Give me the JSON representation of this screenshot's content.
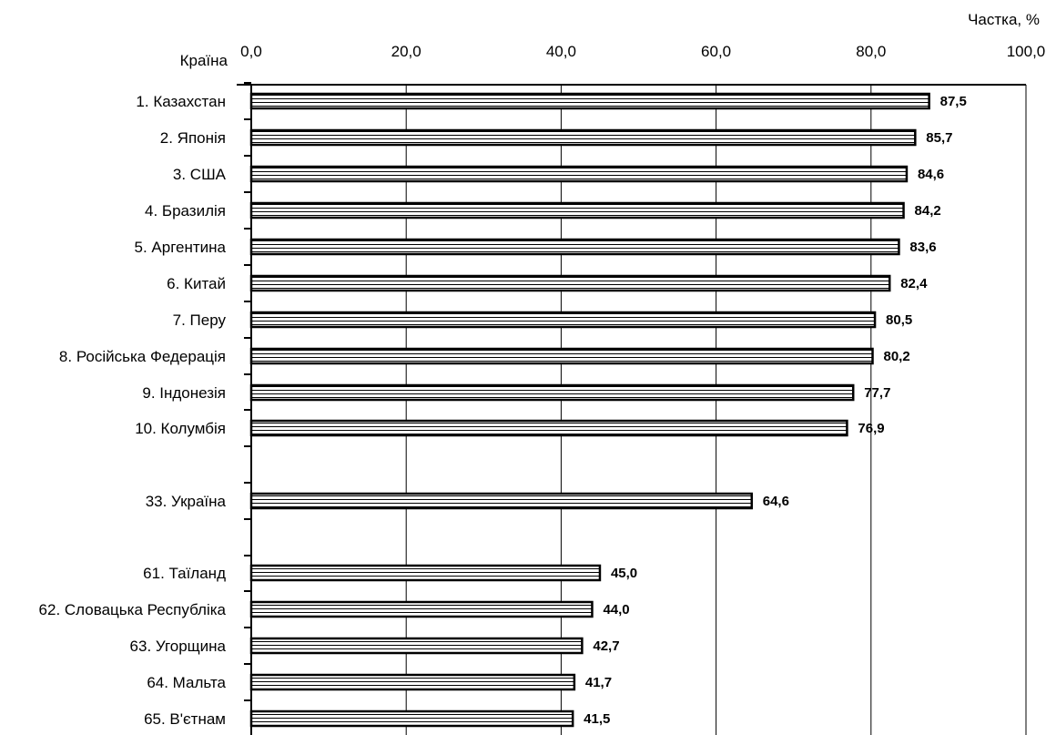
{
  "chart_data": {
    "type": "bar",
    "orientation": "horizontal",
    "xlabel": "Частка, %",
    "ylabel": "Країна",
    "xlim": [
      0,
      100
    ],
    "x_ticks": [
      "0,0",
      "20,0",
      "40,0",
      "60,0",
      "80,0",
      "100,0"
    ],
    "grid": true,
    "categories": [
      "1. Казахстан",
      "2. Японія",
      "3. США",
      "4. Бразилія",
      "5. Аргентина",
      "6. Китай",
      "7. Перу",
      "8. Російська Федерація",
      "9. Індонезія",
      "10. Колумбія",
      "33. Україна",
      "61. Таїланд",
      "62. Словацька Республіка",
      "63. Угорщина",
      "64. Мальта",
      "65. В'єтнам"
    ],
    "values": [
      87.5,
      85.7,
      84.6,
      84.2,
      83.6,
      82.4,
      80.5,
      80.2,
      77.7,
      76.9,
      64.6,
      45.0,
      44.0,
      42.7,
      41.7,
      41.5
    ],
    "value_labels": [
      "87,5",
      "85,7",
      "84,6",
      "84,2",
      "83,6",
      "82,4",
      "80,5",
      "80,2",
      "77,7",
      "76,9",
      "64,6",
      "45,0",
      "44,0",
      "42,7",
      "41,7",
      "41,5"
    ],
    "colors": {
      "bar_fill": "#ffffff",
      "bar_stripe": "#000000",
      "axis": "#000000",
      "grid": "#000000"
    }
  }
}
